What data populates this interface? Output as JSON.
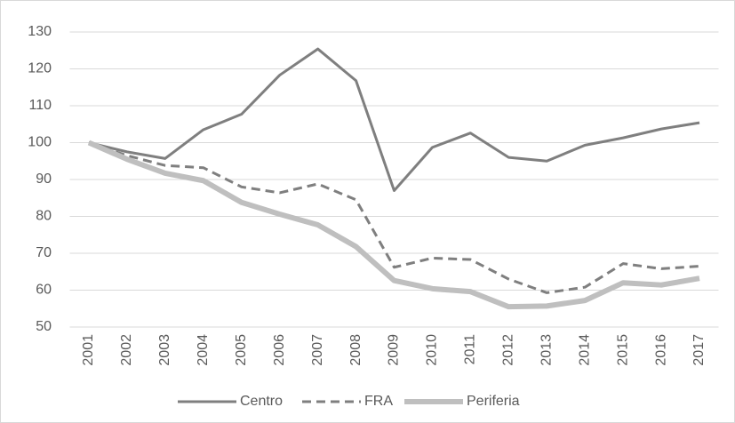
{
  "chart_data": {
    "type": "line",
    "categories": [
      "2001",
      "2002",
      "2003",
      "2004",
      "2005",
      "2006",
      "2007",
      "2008",
      "2009",
      "2010",
      "2011",
      "2012",
      "2013",
      "2014",
      "2015",
      "2016",
      "2017"
    ],
    "series": [
      {
        "name": "Centro",
        "color": "#7f7f7f",
        "dash": false,
        "values": [
          100,
          97.5,
          95.7,
          103.5,
          107.7,
          118.3,
          125.4,
          116.8,
          87,
          98.7,
          102.6,
          96,
          95,
          99.3,
          101.3,
          103.7,
          105.4
        ]
      },
      {
        "name": "FRA",
        "color": "#7f7f7f",
        "dash": true,
        "values": [
          100,
          96.5,
          93.8,
          93.2,
          88,
          86.4,
          88.8,
          84.5,
          66.2,
          68.7,
          68.3,
          63,
          59.3,
          60.8,
          67.2,
          65.8,
          66.5
        ]
      },
      {
        "name": "Periferia",
        "color": "#bfbfbf",
        "dash": false,
        "values": [
          100,
          95.5,
          91.7,
          89.7,
          83.8,
          80.6,
          77.7,
          71.8,
          62.6,
          60.4,
          59.6,
          55.5,
          55.7,
          57.2,
          62,
          61.4,
          63.2
        ]
      }
    ],
    "ylim": [
      50,
      130
    ],
    "yticks": [
      50,
      60,
      70,
      80,
      90,
      100,
      110,
      120,
      130
    ],
    "grid": true,
    "legend": "bottom"
  }
}
